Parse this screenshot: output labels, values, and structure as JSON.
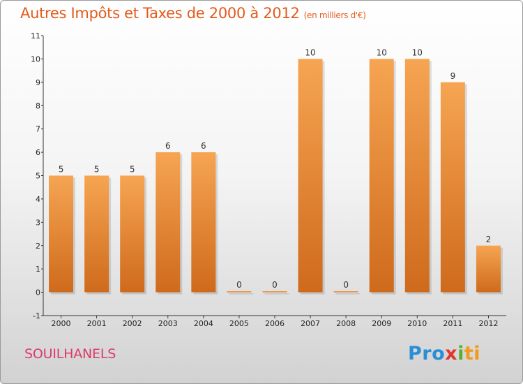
{
  "header": {
    "title": "Autres Impôts et Taxes de 2000 à 2012",
    "unit": "(en milliers d'€)"
  },
  "footer": {
    "commune": "SOUILHANELS",
    "logo": [
      "Pro",
      "x",
      "i",
      "ti"
    ]
  },
  "colors": {
    "title": "#e35a1a",
    "bar_light": "#f6a552",
    "bar_dark": "#cf6a1c",
    "commune": "#dd3a6a"
  },
  "chart_data": {
    "type": "bar",
    "title": "Autres Impôts et Taxes de 2000 à 2012",
    "subtitle": "(en milliers d'€)",
    "categories": [
      "2000",
      "2001",
      "2002",
      "2003",
      "2004",
      "2005",
      "2006",
      "2007",
      "2008",
      "2009",
      "2010",
      "2011",
      "2012"
    ],
    "values": [
      5,
      5,
      5,
      6,
      6,
      0,
      0,
      10,
      0,
      10,
      10,
      9,
      2
    ],
    "data_labels": [
      "5",
      "5",
      "5",
      "6",
      "6",
      "0",
      "0",
      "10",
      "0",
      "10",
      "10",
      "9",
      "2"
    ],
    "ylim": [
      -1,
      11
    ],
    "yticks": [
      -1,
      0,
      1,
      2,
      3,
      4,
      5,
      6,
      7,
      8,
      9,
      10,
      11
    ],
    "ytick_labels": [
      "-1",
      "0",
      "1",
      "2",
      "3",
      "4",
      "5",
      "6",
      "7",
      "8",
      "9",
      "10",
      "11"
    ],
    "xlabel": "",
    "ylabel": "",
    "grid": false,
    "legend": "none"
  }
}
